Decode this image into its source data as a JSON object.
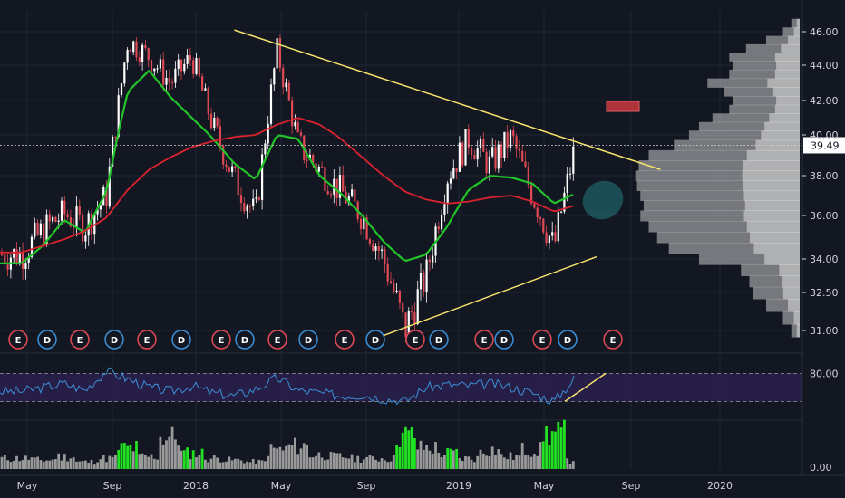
{
  "colors": {
    "background": "#131722",
    "grid": "#1e2433",
    "candle_up": "#ffffff",
    "candle_down": "#e04a55",
    "ma_fast": "#22c42a",
    "ma_slow": "#d9232e",
    "trendline": "#f5e36b",
    "current_price_badge": "#ffffff",
    "rsi_line": "#3b8fd6",
    "rsi_band": "#2a1f4d",
    "volume_high": "#22e022",
    "volume_normal": "#9a9a9a",
    "earnings_badge": "#e04a55",
    "dividend_badge": "#3b8fd6",
    "volume_profile": "#c8c8c8",
    "ellipse": "#2bb3b3",
    "marker_box": "#b0323a"
  },
  "price_axis": {
    "ticks": [
      "46.00",
      "44.00",
      "42.00",
      "40.00",
      "38.00",
      "36.00",
      "34.00",
      "32.50",
      "31.00"
    ],
    "current_price": "39.49"
  },
  "rsi_axis": {
    "ticks": [
      "80.00"
    ]
  },
  "volume_axis": {
    "ticks": [
      "0.00"
    ]
  },
  "time_axis": {
    "labels": [
      "May",
      "Sep",
      "2018",
      "May",
      "Sep",
      "2019",
      "May",
      "Sep",
      "2020"
    ]
  },
  "events": [
    "E",
    "D",
    "E",
    "D",
    "E",
    "D",
    "E",
    "D",
    "E",
    "D",
    "E",
    "D",
    "E",
    "D",
    "E",
    "D",
    "E",
    "D",
    "E",
    "D",
    "E"
  ],
  "chart_data": {
    "type": "candlestick",
    "x_range": [
      "2017-04",
      "2020-03"
    ],
    "ylim": [
      30.5,
      46.8
    ],
    "price_series": {
      "dates": [
        "2017-05",
        "2017-06",
        "2017-07",
        "2017-08",
        "2017-09",
        "2017-10",
        "2017-11",
        "2017-12",
        "2018-01",
        "2018-02",
        "2018-03",
        "2018-04",
        "2018-05",
        "2018-06",
        "2018-07",
        "2018-08",
        "2018-09",
        "2018-10",
        "2018-11",
        "2018-12",
        "2019-01",
        "2019-02",
        "2019-03",
        "2019-04",
        "2019-05",
        "2019-06",
        "2019-07"
      ],
      "close": [
        34.2,
        35.3,
        36.1,
        35.5,
        37.0,
        45.5,
        44.5,
        43.0,
        44.5,
        40.5,
        37.8,
        36.0,
        44.9,
        39.5,
        38.3,
        37.2,
        36.0,
        34.0,
        31.0,
        33.2,
        38.0,
        39.8,
        38.5,
        39.9,
        37.0,
        34.5,
        39.5
      ]
    },
    "moving_averages": [
      {
        "label": "fast",
        "values": [
          33.8,
          34.6,
          35.8,
          35.2,
          37.2,
          42.5,
          43.7,
          42.2,
          41.0,
          39.8,
          38.6,
          37.8,
          40.0,
          39.8,
          38.0,
          37.1,
          36.0,
          34.8,
          33.9,
          34.2,
          35.5,
          37.3,
          38.0,
          37.9,
          37.6,
          36.6,
          37.1
        ]
      },
      {
        "label": "slow",
        "values": [
          34.3,
          34.6,
          34.9,
          35.3,
          35.9,
          37.3,
          38.3,
          38.9,
          39.4,
          39.7,
          39.9,
          40.0,
          40.6,
          41.0,
          40.6,
          39.8,
          38.9,
          38.0,
          37.2,
          36.8,
          36.6,
          36.7,
          36.9,
          37.0,
          36.7,
          36.2,
          36.5
        ]
      }
    ],
    "trendlines": [
      {
        "from": [
          "2018-03",
          46.1
        ],
        "to": [
          "2019-11",
          38.3
        ]
      },
      {
        "from": [
          "2018-10",
          30.8
        ],
        "to": [
          "2019-08",
          34.1
        ]
      }
    ],
    "rsi": {
      "levels": [
        30,
        80
      ],
      "values": [
        48,
        55,
        62,
        50,
        85,
        70,
        55,
        48,
        58,
        45,
        40,
        52,
        72,
        50,
        45,
        40,
        42,
        35,
        30,
        55,
        60,
        58,
        62,
        55,
        45,
        30,
        72
      ]
    },
    "volume": {
      "values": [
        0.3,
        0.25,
        0.35,
        0.2,
        0.3,
        0.6,
        0.35,
        0.9,
        0.45,
        0.3,
        0.25,
        0.2,
        0.55,
        0.65,
        0.4,
        0.35,
        0.3,
        0.3,
        0.95,
        0.6,
        0.45,
        0.3,
        0.55,
        0.35,
        0.55,
        1.0,
        0.25
      ],
      "high_volume_months": [
        "2017-08",
        "2017-10",
        "2018-01",
        "2018-02",
        "2018-07",
        "2018-11",
        "2019-01",
        "2019-04",
        "2019-06"
      ]
    },
    "volume_profile": {
      "price_levels": [
        46.5,
        46,
        45.5,
        45,
        44.5,
        44,
        43.5,
        43,
        42.5,
        42,
        41.5,
        41,
        40.5,
        40,
        39.5,
        39,
        38.5,
        38,
        37.5,
        37,
        36.5,
        36,
        35.5,
        35,
        34.5,
        34,
        33.5,
        33,
        32.5,
        32,
        31.5,
        31
      ],
      "amounts": [
        0.05,
        0.1,
        0.2,
        0.32,
        0.42,
        0.4,
        0.42,
        0.55,
        0.45,
        0.4,
        0.42,
        0.52,
        0.6,
        0.66,
        0.75,
        0.9,
        0.96,
        0.98,
        0.97,
        0.95,
        0.93,
        0.95,
        0.9,
        0.85,
        0.78,
        0.6,
        0.35,
        0.3,
        0.28,
        0.2,
        0.1,
        0.05
      ]
    }
  }
}
